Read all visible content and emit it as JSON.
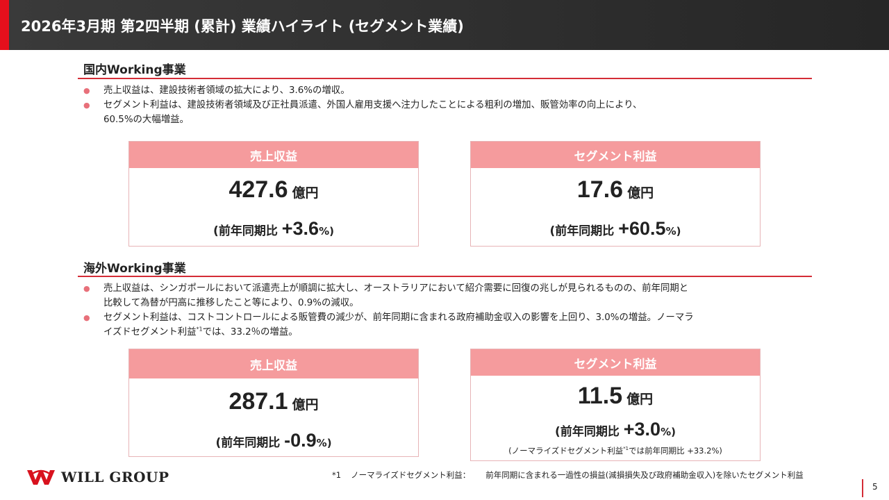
{
  "header": {
    "title": "2026年3月期 第2四半期 (累計) 業績ハイライト (セグメント業績)"
  },
  "domestic": {
    "title": "国内Working事業",
    "bullets": [
      {
        "lines": [
          "売上収益は、建設技術者領域の拡大により、3.6%の増収。"
        ]
      },
      {
        "lines": [
          "セグメント利益は、建設技術者領域及び正社員派遣、外国人雇用支援へ注力したことによる粗利の増加、販管効率の向上により、",
          "60.5%の大幅増益。"
        ]
      }
    ],
    "revenue": {
      "label": "売上収益",
      "value": "427.6",
      "unit": "億円",
      "cmp_prefix": "(前年同期比 ",
      "cmp_value": "+3.6",
      "cmp_suffix": "%)"
    },
    "profit": {
      "label": "セグメント利益",
      "value": "17.6",
      "unit": "億円",
      "cmp_prefix": "(前年同期比 ",
      "cmp_value": "+60.5",
      "cmp_suffix": "%)"
    }
  },
  "overseas": {
    "title": "海外Working事業",
    "bullets": [
      {
        "lines": [
          "売上収益は、シンガポールにおいて派遣売上が順調に拡大し、オーストラリアにおいて紹介需要に回復の兆しが見られるものの、前年同期と",
          "比較して為替が円高に推移したこと等により、0.9%の減収。"
        ]
      },
      {
        "line1": "セグメント利益は、コストコントロールによる販管費の減少が、前年同期に含まれる政府補助金収入の影響を上回り、3.0%の増益。ノーマラ",
        "line2_pre": "イズドセグメント利益",
        "line2_sup": "*1",
        "line2_post": "では、33.2％の増益。"
      }
    ],
    "revenue": {
      "label": "売上収益",
      "value": "287.1",
      "unit": "億円",
      "cmp_prefix": "(前年同期比 ",
      "cmp_value": "-0.9",
      "cmp_suffix": "%)"
    },
    "profit": {
      "label": "セグメント利益",
      "value": "11.5",
      "unit": "億円",
      "cmp_prefix": "(前年同期比 ",
      "cmp_value": "+3.0",
      "cmp_suffix": "%)",
      "note_pre": "(ノーマライズドセグメント利益",
      "note_sup": "*1",
      "note_post": "では前年同期比 +33.2%)"
    }
  },
  "footnote": {
    "mark": "*1",
    "term": "ノーマライズドセグメント利益：",
    "text": "前年同期に含まれる一過性の損益(減損損失及び政府補助金収入)を除いたセグメント利益"
  },
  "logo": {
    "text": "WILL GROUP",
    "color": "#d8121e"
  },
  "page": {
    "number": "5"
  }
}
